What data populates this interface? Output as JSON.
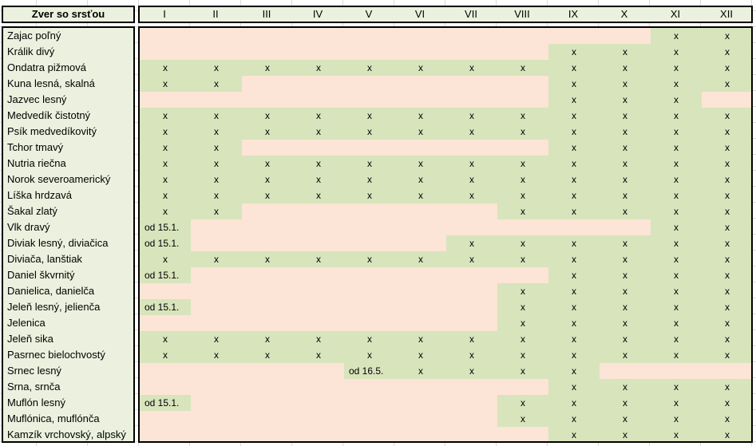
{
  "header": {
    "name_col": "Zver so srsťou",
    "months": [
      "I",
      "II",
      "III",
      "IV",
      "V",
      "VI",
      "VII",
      "VIII",
      "IX",
      "X",
      "XI",
      "XII"
    ]
  },
  "colors": {
    "closed": "#fce4d6",
    "open": "#d8e4bc",
    "header_bg": "#ebf1de"
  },
  "rows": [
    {
      "name": "Zajac poľný",
      "cells": [
        "",
        "",
        "",
        "",
        "",
        "",
        "",
        "",
        "",
        "",
        "x",
        "x"
      ]
    },
    {
      "name": "Králik divý",
      "cells": [
        "",
        "",
        "",
        "",
        "",
        "",
        "",
        "",
        "x",
        "x",
        "x",
        "x"
      ]
    },
    {
      "name": "Ondatra pižmová",
      "cells": [
        "x",
        "x",
        "x",
        "x",
        "x",
        "x",
        "x",
        "x",
        "x",
        "x",
        "x",
        "x"
      ]
    },
    {
      "name": "Kuna lesná, skalná",
      "cells": [
        "x",
        "x",
        "",
        "",
        "",
        "",
        "",
        "",
        "x",
        "x",
        "x",
        "x"
      ]
    },
    {
      "name": "Jazvec lesný",
      "cells": [
        "",
        "",
        "",
        "",
        "",
        "",
        "",
        "",
        "x",
        "x",
        "x",
        ""
      ]
    },
    {
      "name": "Medvedík čistotný",
      "cells": [
        "x",
        "x",
        "x",
        "x",
        "x",
        "x",
        "x",
        "x",
        "x",
        "x",
        "x",
        "x"
      ]
    },
    {
      "name": "Psík medvedíkovitý",
      "cells": [
        "x",
        "x",
        "x",
        "x",
        "x",
        "x",
        "x",
        "x",
        "x",
        "x",
        "x",
        "x"
      ]
    },
    {
      "name": "Tchor tmavý",
      "cells": [
        "x",
        "x",
        "",
        "",
        "",
        "",
        "",
        "",
        "x",
        "x",
        "x",
        "x"
      ]
    },
    {
      "name": "Nutria riečna",
      "cells": [
        "x",
        "x",
        "x",
        "x",
        "x",
        "x",
        "x",
        "x",
        "x",
        "x",
        "x",
        "x"
      ]
    },
    {
      "name": "Norok severoamerický",
      "cells": [
        "x",
        "x",
        "x",
        "x",
        "x",
        "x",
        "x",
        "x",
        "x",
        "x",
        "x",
        "x"
      ]
    },
    {
      "name": "Líška hrdzavá",
      "cells": [
        "x",
        "x",
        "x",
        "x",
        "x",
        "x",
        "x",
        "x",
        "x",
        "x",
        "x",
        "x"
      ]
    },
    {
      "name": "Šakal zlatý",
      "cells": [
        "x",
        "x",
        "",
        "",
        "",
        "",
        "",
        "x",
        "x",
        "x",
        "x",
        "x"
      ]
    },
    {
      "name": "Vlk dravý",
      "cells": [
        "od 15.1.",
        "",
        "",
        "",
        "",
        "",
        "",
        "",
        "",
        "",
        "x",
        "x"
      ]
    },
    {
      "name": "Diviak lesný, diviačica",
      "cells": [
        "od 15.1.",
        "",
        "",
        "",
        "",
        "",
        "x",
        "x",
        "x",
        "x",
        "x",
        "x"
      ]
    },
    {
      "name": "Diviača, lanštiak",
      "cells": [
        "x",
        "x",
        "x",
        "x",
        "x",
        "x",
        "x",
        "x",
        "x",
        "x",
        "x",
        "x"
      ]
    },
    {
      "name": "Daniel škvrnitý",
      "cells": [
        "od 15.1.",
        "",
        "",
        "",
        "",
        "",
        "",
        "",
        "x",
        "x",
        "x",
        "x"
      ]
    },
    {
      "name": "Danielica, danielča",
      "cells": [
        "",
        "",
        "",
        "",
        "",
        "",
        "",
        "x",
        "x",
        "x",
        "x",
        "x"
      ]
    },
    {
      "name": "Jeleň lesný, jelienča",
      "cells": [
        "od 15.1.",
        "",
        "",
        "",
        "",
        "",
        "",
        "x",
        "x",
        "x",
        "x",
        "x"
      ]
    },
    {
      "name": "Jelenica",
      "cells": [
        "",
        "",
        "",
        "",
        "",
        "",
        "",
        "x",
        "x",
        "x",
        "x",
        "x"
      ]
    },
    {
      "name": "Jeleň sika",
      "cells": [
        "x",
        "x",
        "x",
        "x",
        "x",
        "x",
        "x",
        "x",
        "x",
        "x",
        "x",
        "x"
      ]
    },
    {
      "name": "Pasrnec bielochvostý",
      "cells": [
        "x",
        "x",
        "x",
        "x",
        "x",
        "x",
        "x",
        "x",
        "x",
        "x",
        "x",
        "x"
      ]
    },
    {
      "name": "Srnec lesný",
      "cells": [
        "",
        "",
        "",
        "",
        "od 16.5.",
        "x",
        "x",
        "x",
        "x",
        "",
        "",
        ""
      ]
    },
    {
      "name": "Srna, srnča",
      "cells": [
        "",
        "",
        "",
        "",
        "",
        "",
        "",
        "",
        "x",
        "x",
        "x",
        "x"
      ]
    },
    {
      "name": "Muflón lesný",
      "cells": [
        "od 15.1.",
        "",
        "",
        "",
        "",
        "",
        "",
        "x",
        "x",
        "x",
        "x",
        "x"
      ]
    },
    {
      "name": "Muflónica, muflónča",
      "cells": [
        "",
        "",
        "",
        "",
        "",
        "",
        "",
        "x",
        "x",
        "x",
        "x",
        "x"
      ]
    },
    {
      "name": "Kamzík vrchovský, alpský",
      "cells": [
        "",
        "",
        "",
        "",
        "",
        "",
        "",
        "",
        "x",
        "x",
        "x",
        "x"
      ]
    }
  ]
}
